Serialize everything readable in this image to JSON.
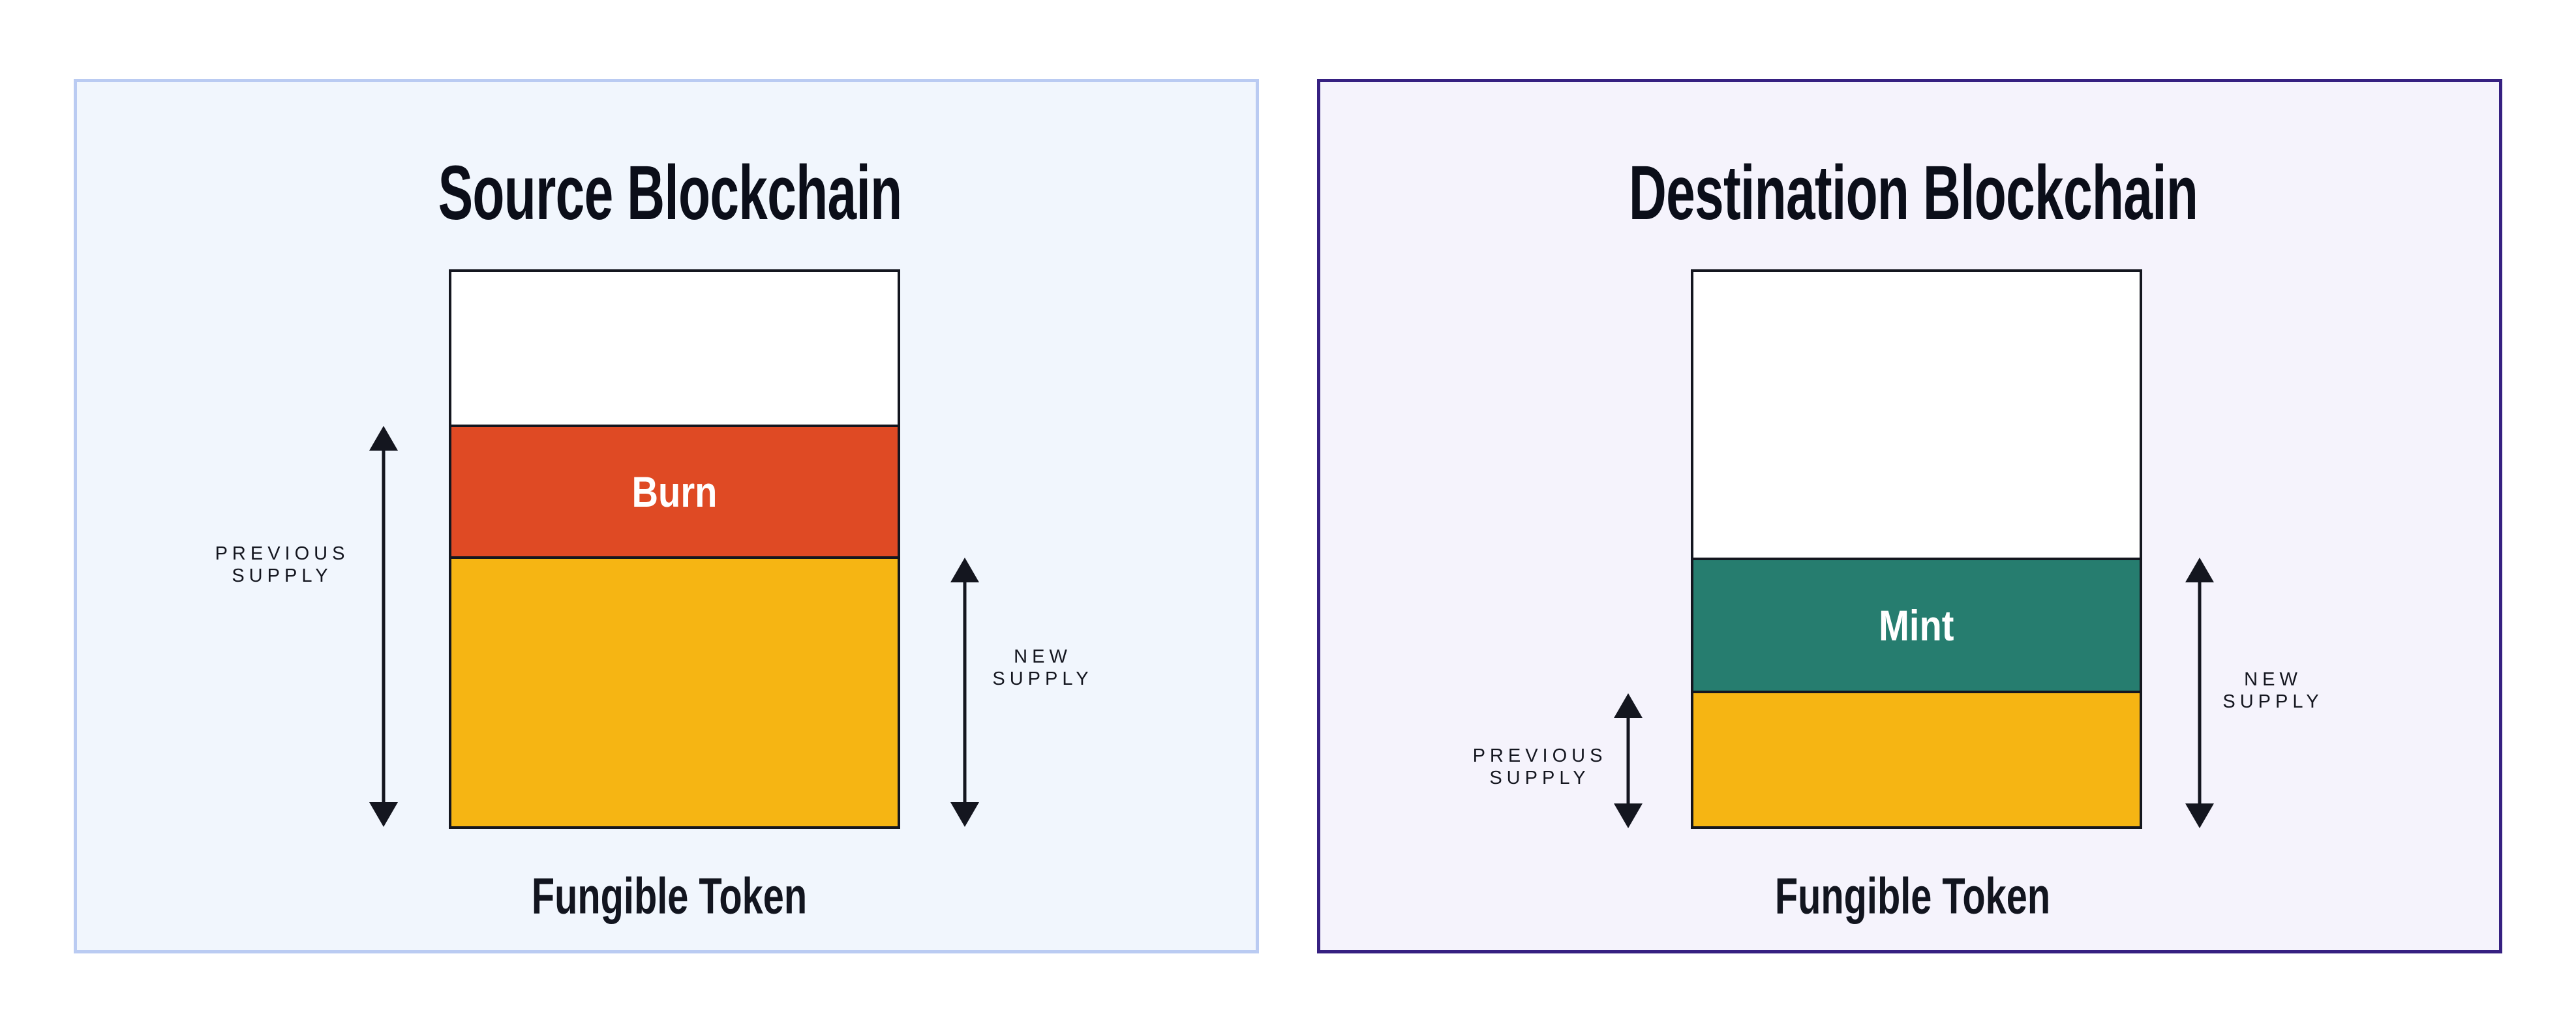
{
  "figure": {
    "background": "#FFFFFF",
    "ink_color": "#14161F",
    "source_panel": {
      "title": "Source Blockchain",
      "panel_bg": "#F1F6FD",
      "panel_border": "#BACBF2",
      "previous_supply_label": "PREVIOUS\nSUPPLY",
      "new_supply_label": "NEW\nSUPPLY",
      "token_label": "Fungible Token",
      "bar": {
        "segments": [
          {
            "name": "headroom",
            "color": "#FFFFFF",
            "fraction": 0.275
          },
          {
            "name": "burn",
            "label": "Burn",
            "color": "#DF4A24",
            "fraction": 0.238
          },
          {
            "name": "remaining-supply",
            "color": "#F6B513",
            "fraction": 0.487
          }
        ]
      }
    },
    "destination_panel": {
      "title": "Destination Blockchain",
      "panel_bg": "#F5F3FC",
      "panel_border": "#362081",
      "previous_supply_label": "PREVIOUS\nSUPPLY",
      "new_supply_label": "NEW\nSUPPLY",
      "token_label": "Fungible Token",
      "bar": {
        "segments": [
          {
            "name": "headroom",
            "color": "#FFFFFF",
            "fraction": 0.515
          },
          {
            "name": "mint",
            "label": "Mint",
            "color": "#267D6F",
            "fraction": 0.24
          },
          {
            "name": "previous-supply",
            "color": "#F6B513",
            "fraction": 0.245
          }
        ]
      }
    }
  }
}
